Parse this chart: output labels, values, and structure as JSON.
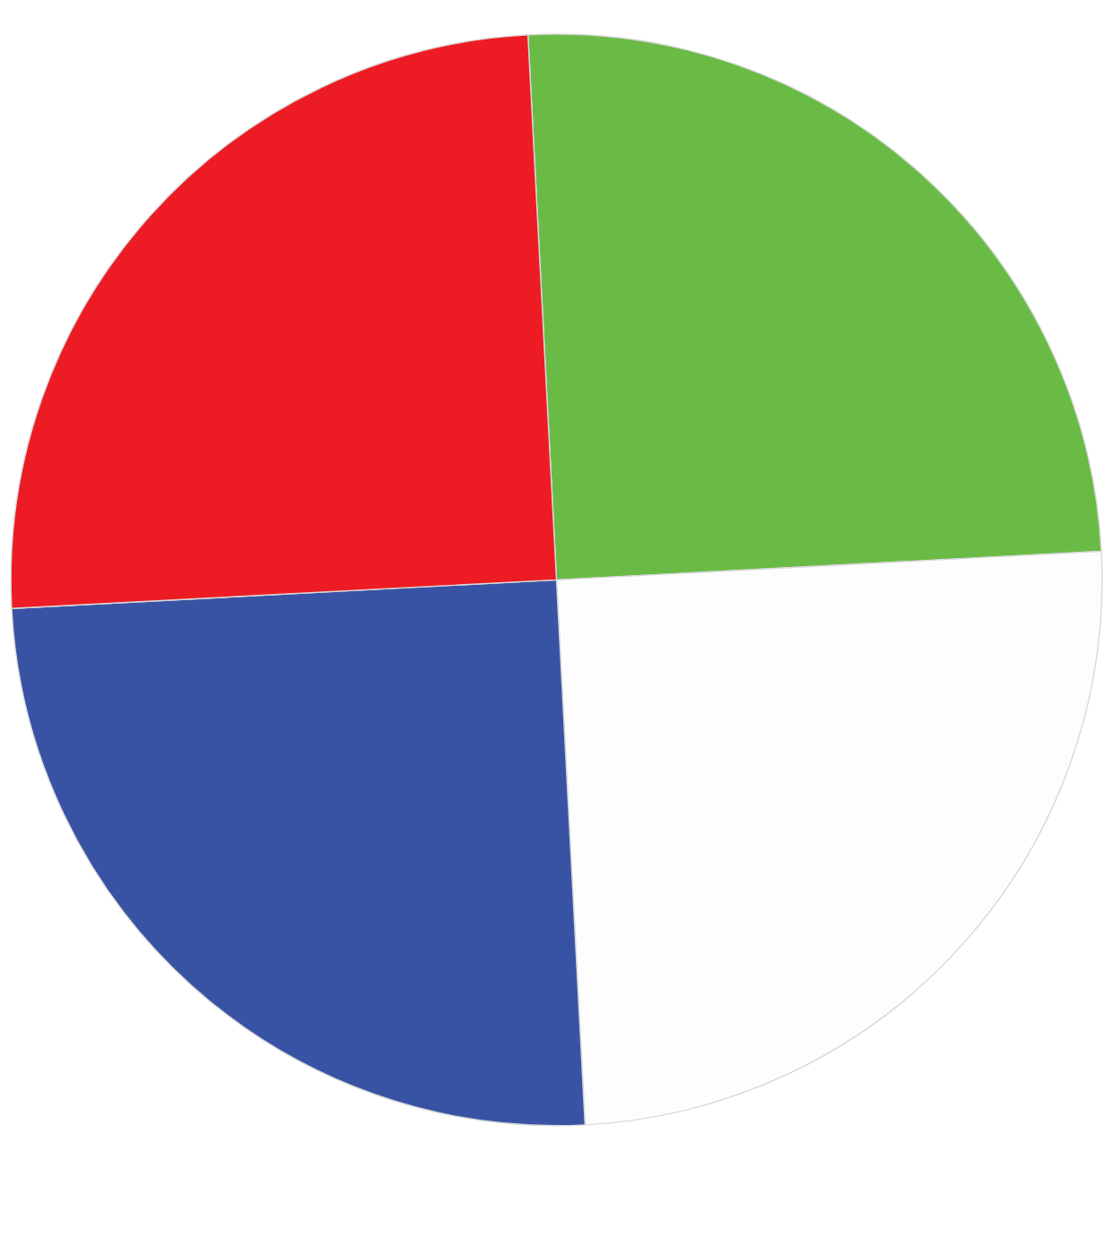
{
  "chart_data": {
    "type": "pie",
    "categories": [
      null,
      null,
      null,
      null
    ],
    "values": [
      25,
      25,
      25,
      25
    ],
    "colors": [
      "#6abb46",
      "#fdfdfd",
      "#3953a4",
      "#ed1c24"
    ]
  }
}
